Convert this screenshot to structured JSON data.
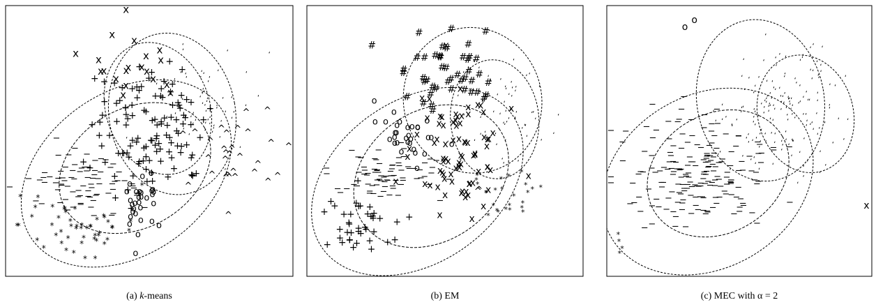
{
  "chart_data": [
    {
      "type": "scatter",
      "caption_prefix": "(a)",
      "caption_var": "k",
      "caption_suffix": "-means",
      "grid": false,
      "series": [
        {
          "marker": "x",
          "count": 20,
          "region": "upper cluster"
        },
        {
          "marker": "+",
          "count": 120,
          "region": "center"
        },
        {
          "marker": "‘",
          "count": 60,
          "region": "upper right"
        },
        {
          "marker": "^",
          "count": 30,
          "region": "right"
        },
        {
          "marker": "−",
          "count": 80,
          "region": "left"
        },
        {
          "marker": "*",
          "count": 50,
          "region": "lower left"
        },
        {
          "marker": "o",
          "count": 30,
          "region": "lower center"
        }
      ]
    },
    {
      "type": "scatter",
      "caption_prefix": "(b)",
      "caption_var": "",
      "caption_suffix": "EM",
      "grid": false,
      "series": [
        {
          "marker": "#",
          "count": 45,
          "region": "upper"
        },
        {
          "marker": "o",
          "count": 30,
          "region": "center left"
        },
        {
          "marker": "x",
          "count": 80,
          "region": "center"
        },
        {
          "marker": "−",
          "count": 80,
          "region": "left"
        },
        {
          "marker": "+",
          "count": 40,
          "region": "lower left"
        },
        {
          "marker": "‘",
          "count": 60,
          "region": "upper right"
        },
        {
          "marker": "*",
          "count": 25,
          "region": "lower right"
        },
        {
          "marker": "^",
          "count": 2,
          "region": "center right"
        }
      ]
    },
    {
      "type": "scatter",
      "caption_prefix": "(c)",
      "caption_var": "",
      "caption_suffix": "MEC with α = 2",
      "grid": false,
      "series": [
        {
          "marker": "o",
          "count": 2,
          "region": "top left"
        },
        {
          "marker": "‘",
          "count": 160,
          "region": "upper right"
        },
        {
          "marker": "−",
          "count": 200,
          "region": "center left"
        },
        {
          "marker": "*",
          "count": 4,
          "region": "lower left"
        },
        {
          "marker": "x",
          "count": 1,
          "region": "right edge"
        }
      ]
    }
  ]
}
